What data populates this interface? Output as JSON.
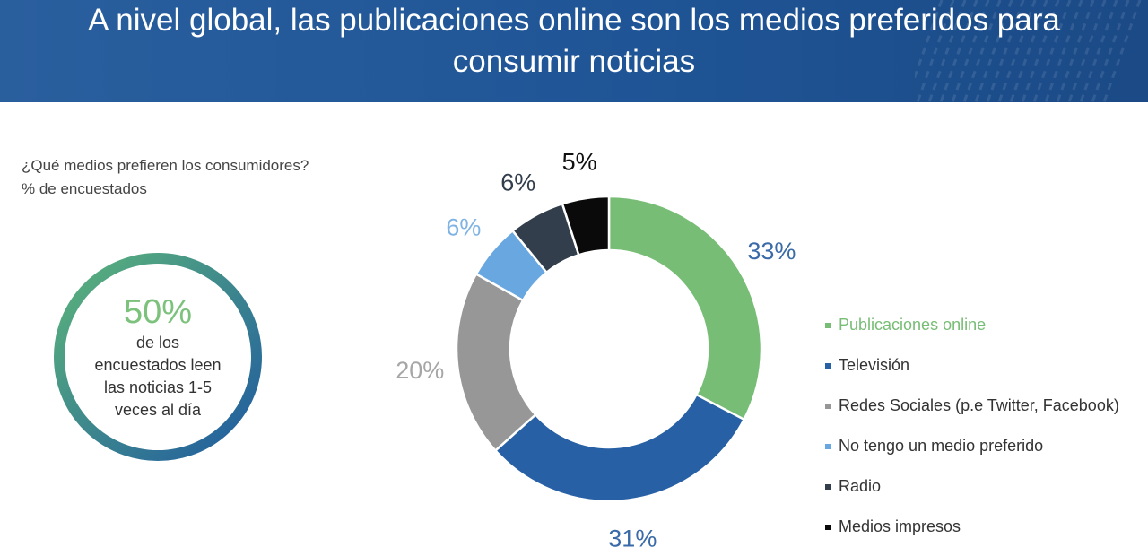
{
  "header": {
    "title_line1": "A nivel global, las publicaciones online son los medios preferidos para",
    "title_line2": "consumir noticias"
  },
  "question": {
    "line1": "¿Qué medios prefieren los consumidores?",
    "line2": "% de encuestados"
  },
  "stat": {
    "value": "50%",
    "desc_line1": "de los",
    "desc_line2": "encuestados leen",
    "desc_line3": "las noticias 1-5",
    "desc_line4": "veces al día"
  },
  "colors": {
    "header": "#1f5596",
    "ring_start": "#5cb57a",
    "ring_end": "#1f5aa0"
  },
  "chart_data": {
    "type": "pie",
    "donut": true,
    "title": "",
    "legend_position": "right",
    "slices": [
      {
        "label": "Publicaciones online",
        "value": 33,
        "display": "33%",
        "color": "#77bd75",
        "label_color": "#3a6aa8"
      },
      {
        "label": "Televisión",
        "value": 31,
        "display": "31%",
        "color": "#2760a4",
        "label_color": "#3a6aa8"
      },
      {
        "label": "Redes Sociales (p.e Twitter, Facebook)",
        "value": 20,
        "display": "20%",
        "color": "#979797",
        "label_color": "#a6a6a6"
      },
      {
        "label": "No tengo un medio preferido",
        "value": 6,
        "display": "6%",
        "color": "#69a7e0",
        "label_color": "#7fb3e3"
      },
      {
        "label": "Radio",
        "value": 6,
        "display": "6%",
        "color": "#323e4c",
        "label_color": "#323e4c"
      },
      {
        "label": "Medios impresos",
        "value": 5,
        "display": "5%",
        "color": "#0a0a0a",
        "label_color": "#111111"
      }
    ]
  }
}
